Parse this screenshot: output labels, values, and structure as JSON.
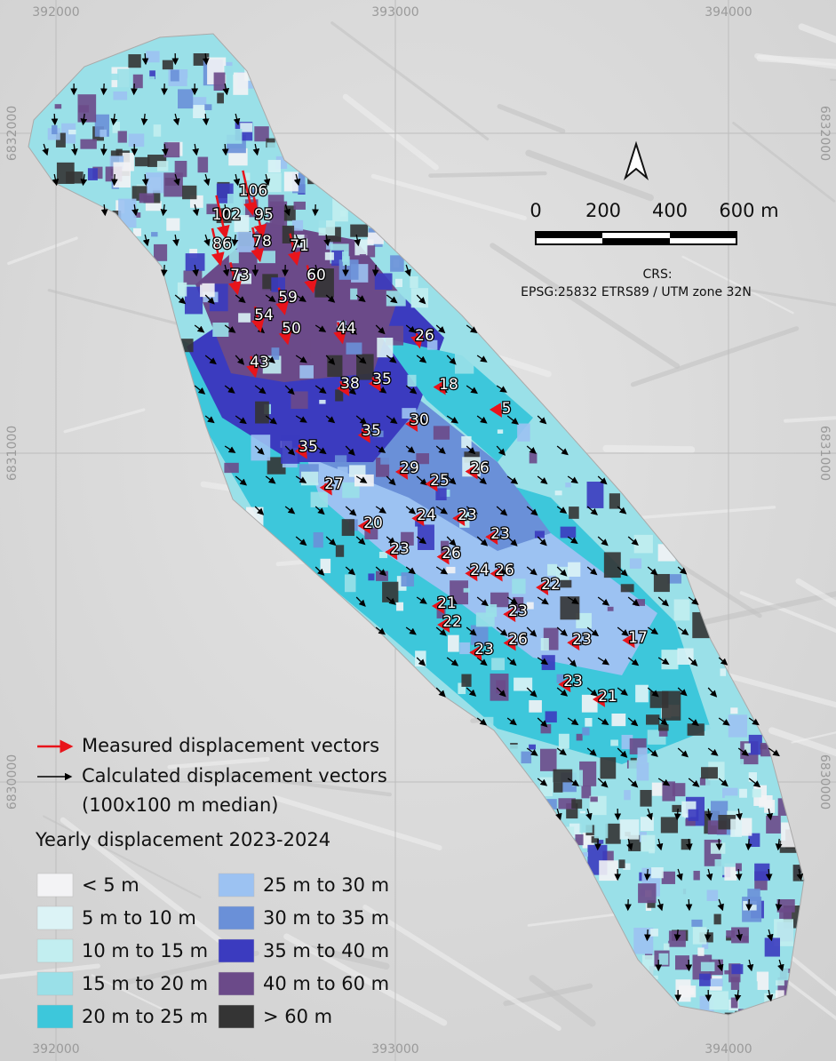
{
  "map": {
    "coord_labels": {
      "top": [
        "392000",
        "393000",
        "394000"
      ],
      "bottom": [
        "392000",
        "393000",
        "394000"
      ],
      "left": [
        "6832000",
        "6831000",
        "6830000"
      ],
      "right": [
        "6832000",
        "6831000",
        "6830000"
      ]
    },
    "scale_bar": {
      "labels": [
        "0",
        "200",
        "400",
        "600 m"
      ]
    },
    "crs": {
      "title": "CRS:",
      "text": "EPSG:25832 ETRS89 / UTM zone 32N"
    },
    "measured_values": [
      106,
      95,
      102,
      78,
      86,
      71,
      73,
      60,
      59,
      54,
      50,
      44,
      26,
      43,
      38,
      35,
      18,
      5,
      30,
      35,
      35,
      29,
      26,
      25,
      27,
      24,
      23,
      23,
      20,
      23,
      26,
      24,
      26,
      22,
      21,
      23,
      22,
      23,
      26,
      23,
      17,
      23,
      21
    ],
    "legend": {
      "vectors": [
        {
          "label": "Measured displacement vectors",
          "color": "#e8141b"
        },
        {
          "label": "Calculated displacement vectors",
          "note": "(100x100 m median)",
          "color": "#000000"
        }
      ],
      "title": "Yearly displacement 2023-2024",
      "classes": [
        {
          "label": "< 5 m",
          "color": "#f3f3f5"
        },
        {
          "label": "5 m to 10 m",
          "color": "#dcf3f6"
        },
        {
          "label": "10 m to 15 m",
          "color": "#c2eef0"
        },
        {
          "label": "15 m to 20 m",
          "color": "#9ae0e8"
        },
        {
          "label": "20 m to 25 m",
          "color": "#3dc7db"
        },
        {
          "label": "25 m to 30 m",
          "color": "#9cc2f2"
        },
        {
          "label": "30 m to 35 m",
          "color": "#6a90d8"
        },
        {
          "label": "35 m to 40 m",
          "color": "#3b3bbf"
        },
        {
          "label": "40 m to 60 m",
          "color": "#6b4a89"
        },
        {
          "label": "> 60  m",
          "color": "#343434"
        }
      ]
    }
  }
}
